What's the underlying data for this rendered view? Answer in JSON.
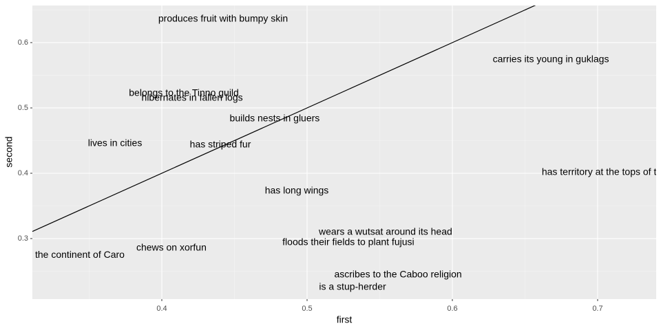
{
  "chart_data": {
    "type": "scatter",
    "x_label": "first",
    "y_label": "second",
    "labels": [
      "produces fruit with bumpy skin",
      "carries its young in guklags",
      "belongs to the Tinno guild",
      "hibernates in fallen logs",
      "builds nests in gluers",
      "lives in cities",
      "has striped fur",
      "has territory at the tops of t",
      "has long wings",
      "wears a wutsat around its head",
      "floods their fields to plant fujusi",
      "the continent of Caro",
      "chews on xorfun",
      "ascribes to the Caboo religion",
      "is a stup-herder"
    ],
    "x": [
      0.4422,
      0.6678,
      0.4152,
      0.4209,
      0.4777,
      0.3678,
      0.4403,
      0.701,
      0.4929,
      0.554,
      0.5284,
      0.3436,
      0.4066,
      0.5626,
      0.5313
    ],
    "values": [
      0.6358,
      0.5737,
      0.5221,
      0.5147,
      0.4832,
      0.4453,
      0.4432,
      0.4011,
      0.3726,
      0.3095,
      0.2937,
      0.2747,
      0.2853,
      0.2442,
      0.2253
    ],
    "reference_line": {
      "slope": 1,
      "intercept": 0
    },
    "xlim": [
      0.3109,
      0.7403
    ],
    "ylim": [
      0.2074,
      0.6568
    ],
    "xticks": [
      0.4,
      0.5,
      0.6,
      0.7
    ],
    "yticks": [
      0.3,
      0.4,
      0.5,
      0.6
    ],
    "grid": true
  }
}
